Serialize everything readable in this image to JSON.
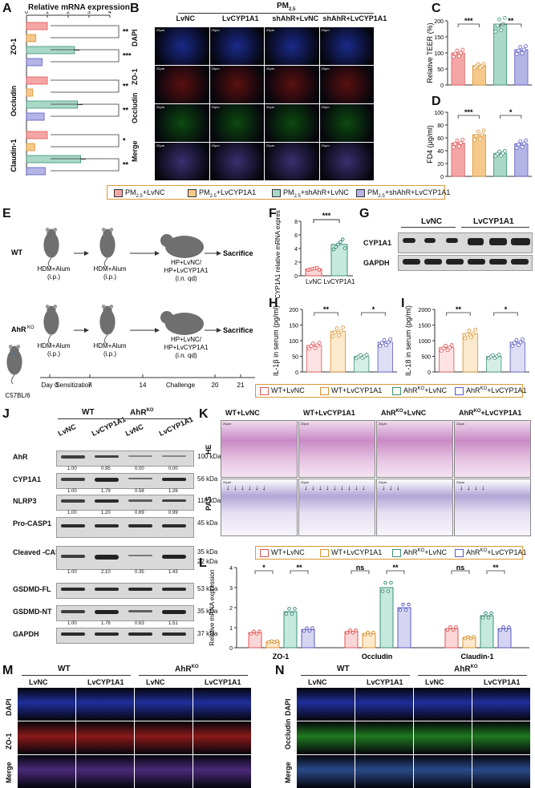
{
  "panels": {
    "A": {
      "label": "A",
      "title": "Relative mRNA expression",
      "x_ticks": [
        "0",
        "1",
        "2",
        "3",
        "4"
      ],
      "groups": [
        "ZO-1",
        "Occludin",
        "Claudin-1"
      ],
      "values": [
        [
          1.0,
          0.45,
          2.3,
          0.75
        ],
        [
          1.0,
          0.3,
          2.45,
          0.85
        ],
        [
          1.0,
          0.4,
          2.6,
          0.9
        ]
      ],
      "sig": [
        "**",
        "***",
        "**",
        "**",
        "*",
        "**"
      ]
    },
    "B": {
      "label": "B",
      "header": "PM2.5",
      "cols": [
        "LvNC",
        "LvCYP1A1",
        "shAhR+LvNC",
        "shAhR+LvCYP1A1"
      ],
      "rows": [
        "DAPI",
        "ZO-1",
        "Occludin",
        "Merge"
      ],
      "scale": "20μm"
    },
    "C": {
      "label": "C",
      "ylabel": "Relative TEER (%)",
      "yticks": [
        "0",
        "50",
        "100",
        "150",
        "200"
      ],
      "values": [
        100,
        60,
        190,
        110
      ],
      "sig": [
        "***",
        "**"
      ]
    },
    "D": {
      "label": "D",
      "ylabel": "FD4 (μg/ml)",
      "yticks": [
        "0",
        "20",
        "40",
        "60",
        "80",
        "100"
      ],
      "values": [
        52,
        65,
        36,
        51
      ],
      "sig": [
        "***",
        "*"
      ]
    },
    "legend1": [
      "PM2.5+LvNC",
      "PM2.5+LvCYP1A1",
      "PM2.5+shAhR+LvNC",
      "PM2.5+shAhR+LvCYP1A1"
    ],
    "E": {
      "label": "E",
      "wt": "WT",
      "ko": "AhR",
      "ko_sup": "KO",
      "step1": "HDM+Alum",
      "step1b": "(i.p.)",
      "step2": "HDM+Alum",
      "step2b": "(i.p.)",
      "step3": "HP+LvNC/",
      "step3b": "HP+LvCYP1A1",
      "step3c": "(i.n. qd)",
      "end": "Sacrifice",
      "strain": "C57BL/6",
      "timeline": [
        "Day 0",
        "7",
        "14",
        "20",
        "21"
      ],
      "phase1": "Sensitization",
      "phase2": "Challenge"
    },
    "F": {
      "label": "F",
      "ylabel": "CYP1A1 relative mRNA expression",
      "yticks": [
        "0",
        "2",
        "4",
        "6",
        "8"
      ],
      "cats": [
        "LvNC",
        "LvCYP1A1"
      ],
      "values": [
        1.0,
        4.6
      ],
      "sig": "***"
    },
    "G": {
      "label": "G",
      "groups": [
        "LvNC",
        "LvCYP1A1"
      ],
      "bands": [
        "CYP1A1",
        "GAPDH"
      ]
    },
    "H": {
      "label": "H",
      "ylabel": "IL-1β in serum (pg/ml)",
      "yticks": [
        "0",
        "50",
        "100",
        "150",
        "200"
      ],
      "values": [
        85,
        130,
        50,
        95
      ],
      "sig": [
        "**",
        "*"
      ]
    },
    "I": {
      "label": "I",
      "ylabel": "IL-18 in serum (pg/ml)",
      "yticks": [
        "0",
        "500",
        "1000",
        "1500",
        "2000"
      ],
      "values": [
        780,
        1230,
        500,
        950
      ],
      "sig": [
        "**",
        "*"
      ]
    },
    "legend2": [
      "WT+LvNC",
      "WT+LvCYP1A1",
      "AhR",
      "AhR"
    ],
    "legend2_suffix": [
      "",
      "",
      "+LvNC",
      "+LvCYP1A1"
    ],
    "J": {
      "label": "J",
      "groups": [
        "WT",
        "AhR"
      ],
      "lanes": [
        "LvNC",
        "LvCYP1A1",
        "LvNC",
        "LvCYP1A1"
      ],
      "rows": [
        {
          "name": "AhR",
          "kda": "100 kDa",
          "q": [
            "1.00",
            "0.95",
            "0.00",
            "0.00"
          ]
        },
        {
          "name": "CYP1A1",
          "kda": "56 kDa",
          "q": [
            "1.00",
            "1.79",
            "0.58",
            "1.26"
          ]
        },
        {
          "name": "NLRP3",
          "kda": "118 kDa",
          "q": [
            "1.00",
            "1.20",
            "0.69",
            "0.99"
          ]
        },
        {
          "name": "Pro-CASP1",
          "kda": "45 kDa",
          "q": []
        },
        {
          "name": "Cleaved -CASP1",
          "kda": "35 kDa",
          "kda2": "22 kDa",
          "q": [
            "1.00",
            "2.10",
            "0.35",
            "1.43"
          ]
        },
        {
          "name": "GSDMD-FL",
          "kda": "53 kDa",
          "q": []
        },
        {
          "name": "GSDMD-NT",
          "kda": "35 kDa",
          "q": [
            "1.00",
            "1.76",
            "0.63",
            "1.51"
          ]
        },
        {
          "name": "GAPDH",
          "kda": "37 kDa",
          "q": []
        }
      ]
    },
    "K": {
      "label": "K",
      "cols": [
        "WT+LvNC",
        "WT+LvCYP1A1",
        "AhR",
        "AhR"
      ],
      "cols_suffix": [
        "",
        "",
        "+LvNC",
        "+LvCYP1A1"
      ],
      "rows": [
        "HE",
        "PAS"
      ],
      "scale": "20μm"
    },
    "L": {
      "label": "L",
      "ylabel": "Relative mRNA expression",
      "yticks": [
        "0",
        "1",
        "2",
        "3",
        "4"
      ],
      "groups": [
        "ZO-1",
        "Occludin",
        "Claudin-1"
      ],
      "values": [
        [
          0.75,
          0.3,
          1.8,
          0.9
        ],
        [
          0.8,
          0.7,
          3.0,
          2.0
        ],
        [
          0.95,
          0.5,
          1.6,
          0.95
        ]
      ],
      "sig": [
        "*",
        "**",
        "ns",
        "**",
        "ns",
        "**"
      ]
    },
    "M": {
      "label": "M",
      "groups": [
        "WT",
        "AhR"
      ],
      "cols": [
        "LvNC",
        "LvCYP1A1",
        "LvNC",
        "LvCYP1A1"
      ],
      "rows": [
        "DAPI",
        "ZO-1",
        "Merge"
      ]
    },
    "N": {
      "label": "N",
      "groups": [
        "WT",
        "AhR"
      ],
      "cols": [
        "LvNC",
        "LvCYP1A1",
        "LvNC",
        "LvCYP1A1"
      ],
      "rows": [
        "DAPI",
        "Occludin",
        "Merge"
      ]
    }
  },
  "colors": {
    "c1": "#f4a6a6",
    "c2": "#f6c98a",
    "c3": "#a9d8c6",
    "c4": "#b4b4e6",
    "e1": "#e05555",
    "e2": "#d9922e",
    "e3": "#3d8f7a",
    "e4": "#5b5bc0",
    "legend_border": "#d79a3a"
  }
}
